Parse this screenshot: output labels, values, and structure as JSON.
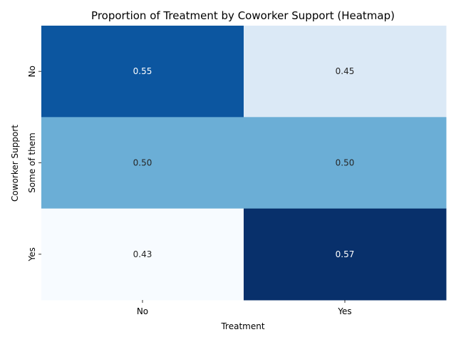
{
  "chart_data": {
    "type": "heatmap",
    "title": "Proportion of Treatment by Coworker Support (Heatmap)",
    "xlabel": "Treatment",
    "ylabel": "Coworker Support",
    "x_categories": [
      "No",
      "Yes"
    ],
    "y_categories": [
      "No",
      "Some of them",
      "Yes"
    ],
    "values": [
      [
        0.55,
        0.45
      ],
      [
        0.5,
        0.5
      ],
      [
        0.43,
        0.57
      ]
    ],
    "labels": [
      [
        "0.55",
        "0.45"
      ],
      [
        "0.50",
        "0.50"
      ],
      [
        "0.43",
        "0.57"
      ]
    ],
    "colormap": "Blues",
    "color_range": [
      0.43,
      0.57
    ],
    "colorbar": false
  }
}
